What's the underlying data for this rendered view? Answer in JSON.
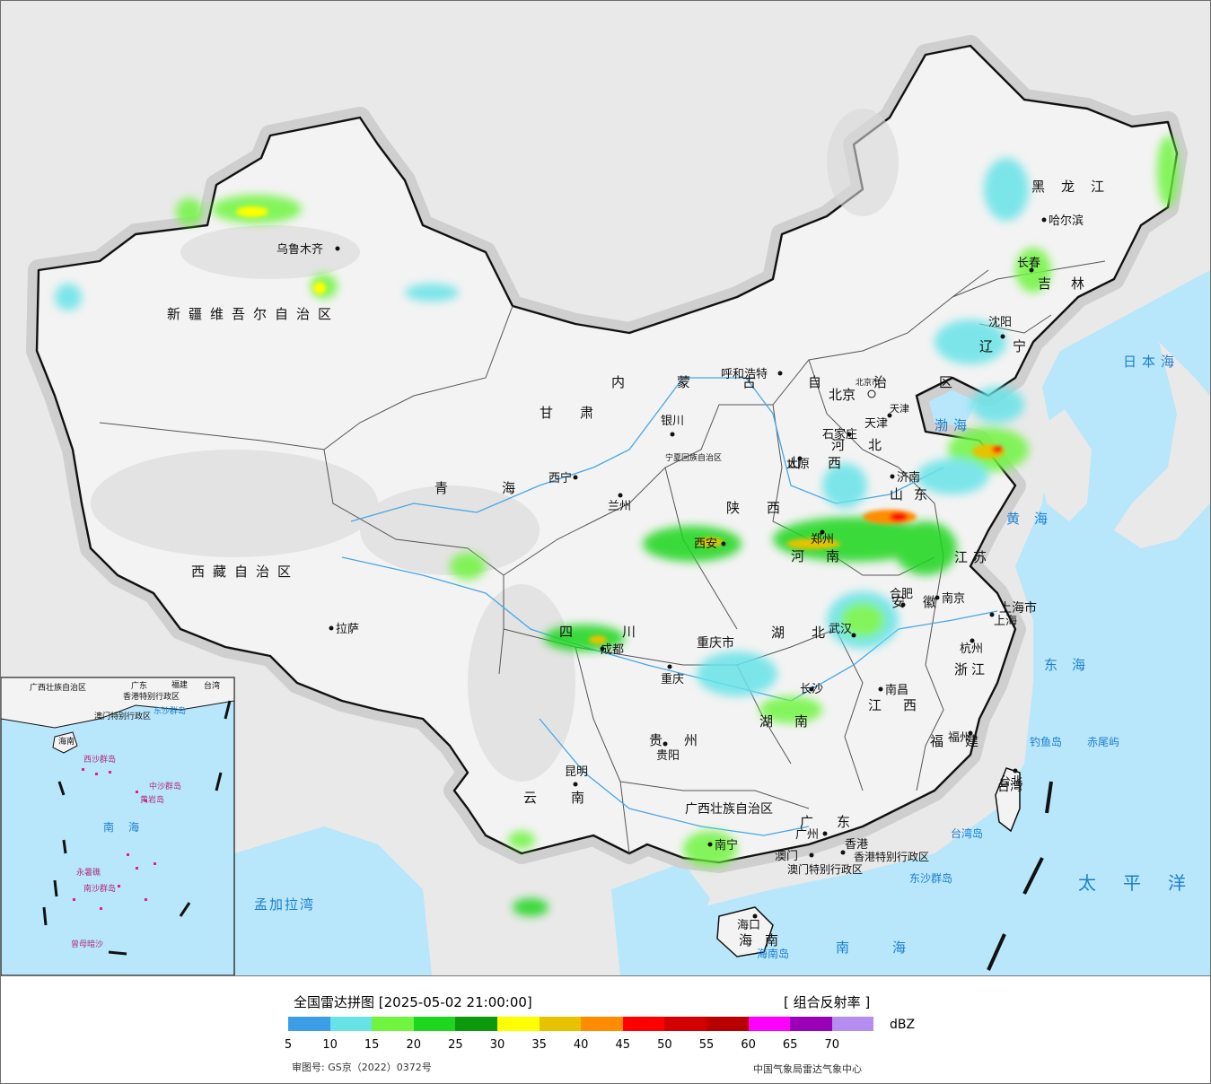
{
  "legend": {
    "title": "全国雷达拼图 [2025-05-02 21:00:00]",
    "product": "[ 组合反射率 ]",
    "unit": "dBZ",
    "scale_colors": [
      "#3d9ee8",
      "#67e3e8",
      "#6ff53f",
      "#1fd61f",
      "#0c9a0c",
      "#ffff00",
      "#e6c200",
      "#ff8c00",
      "#ff0000",
      "#d40000",
      "#b80000",
      "#ff00ff",
      "#9900b8",
      "#b58cf0"
    ],
    "ticks": [
      "5",
      "10",
      "15",
      "20",
      "25",
      "30",
      "35",
      "40",
      "45",
      "50",
      "55",
      "60",
      "65",
      "70"
    ],
    "approval": "审图号: GS京（2022）0372号",
    "agency": "中国气象局雷达气象中心"
  },
  "map": {
    "provinces": [
      {
        "name": "新疆维吾尔自治区"
      },
      {
        "name": "西藏自治区"
      },
      {
        "name": "青海"
      },
      {
        "name": "甘肃"
      },
      {
        "name": "内蒙古自治区"
      },
      {
        "name": "黑龙江"
      },
      {
        "name": "吉林"
      },
      {
        "name": "辽宁"
      },
      {
        "name": "河北"
      },
      {
        "name": "山西"
      },
      {
        "name": "陕西"
      },
      {
        "name": "宁夏回族自治区"
      },
      {
        "name": "四川"
      },
      {
        "name": "重庆市"
      },
      {
        "name": "云南"
      },
      {
        "name": "贵州"
      },
      {
        "name": "广西壮族自治区"
      },
      {
        "name": "广东"
      },
      {
        "name": "海南"
      },
      {
        "name": "湖南"
      },
      {
        "name": "湖北"
      },
      {
        "name": "江西"
      },
      {
        "name": "福建"
      },
      {
        "name": "浙江"
      },
      {
        "name": "安徽"
      },
      {
        "name": "江苏"
      },
      {
        "name": "山东"
      },
      {
        "name": "河南"
      },
      {
        "name": "上海市"
      },
      {
        "name": "天津"
      },
      {
        "name": "北京市"
      },
      {
        "name": "台湾"
      },
      {
        "name": "香港特别行政区"
      },
      {
        "name": "澳门特别行政区"
      }
    ],
    "cities": [
      "乌鲁木齐",
      "拉萨",
      "西宁",
      "兰州",
      "银川",
      "呼和浩特",
      "北京",
      "天津",
      "石家庄",
      "太原",
      "济南",
      "西安",
      "郑州",
      "合肥",
      "南京",
      "上海",
      "杭州",
      "武汉",
      "长沙",
      "南昌",
      "福州",
      "台北",
      "成都",
      "重庆",
      "贵阳",
      "昆明",
      "南宁",
      "广州",
      "澳门",
      "香港",
      "海口",
      "哈尔滨",
      "长春",
      "沈阳"
    ],
    "seas": [
      "日本海",
      "渤海",
      "黄海",
      "东海",
      "太平洋",
      "南海",
      "孟加拉湾"
    ],
    "islands": [
      "钓鱼岛",
      "赤尾屿",
      "台湾岛",
      "东沙群岛",
      "海南岛"
    ],
    "inset_labels": [
      "广西壮族自治区",
      "广东",
      "福建",
      "台湾",
      "香港特别行政区",
      "澳门特别行政区",
      "东沙群岛",
      "海南",
      "南海",
      "中沙群岛",
      "黄岩岛",
      "西沙群岛",
      "永暑礁",
      "南沙群岛",
      "曾母暗沙"
    ]
  }
}
